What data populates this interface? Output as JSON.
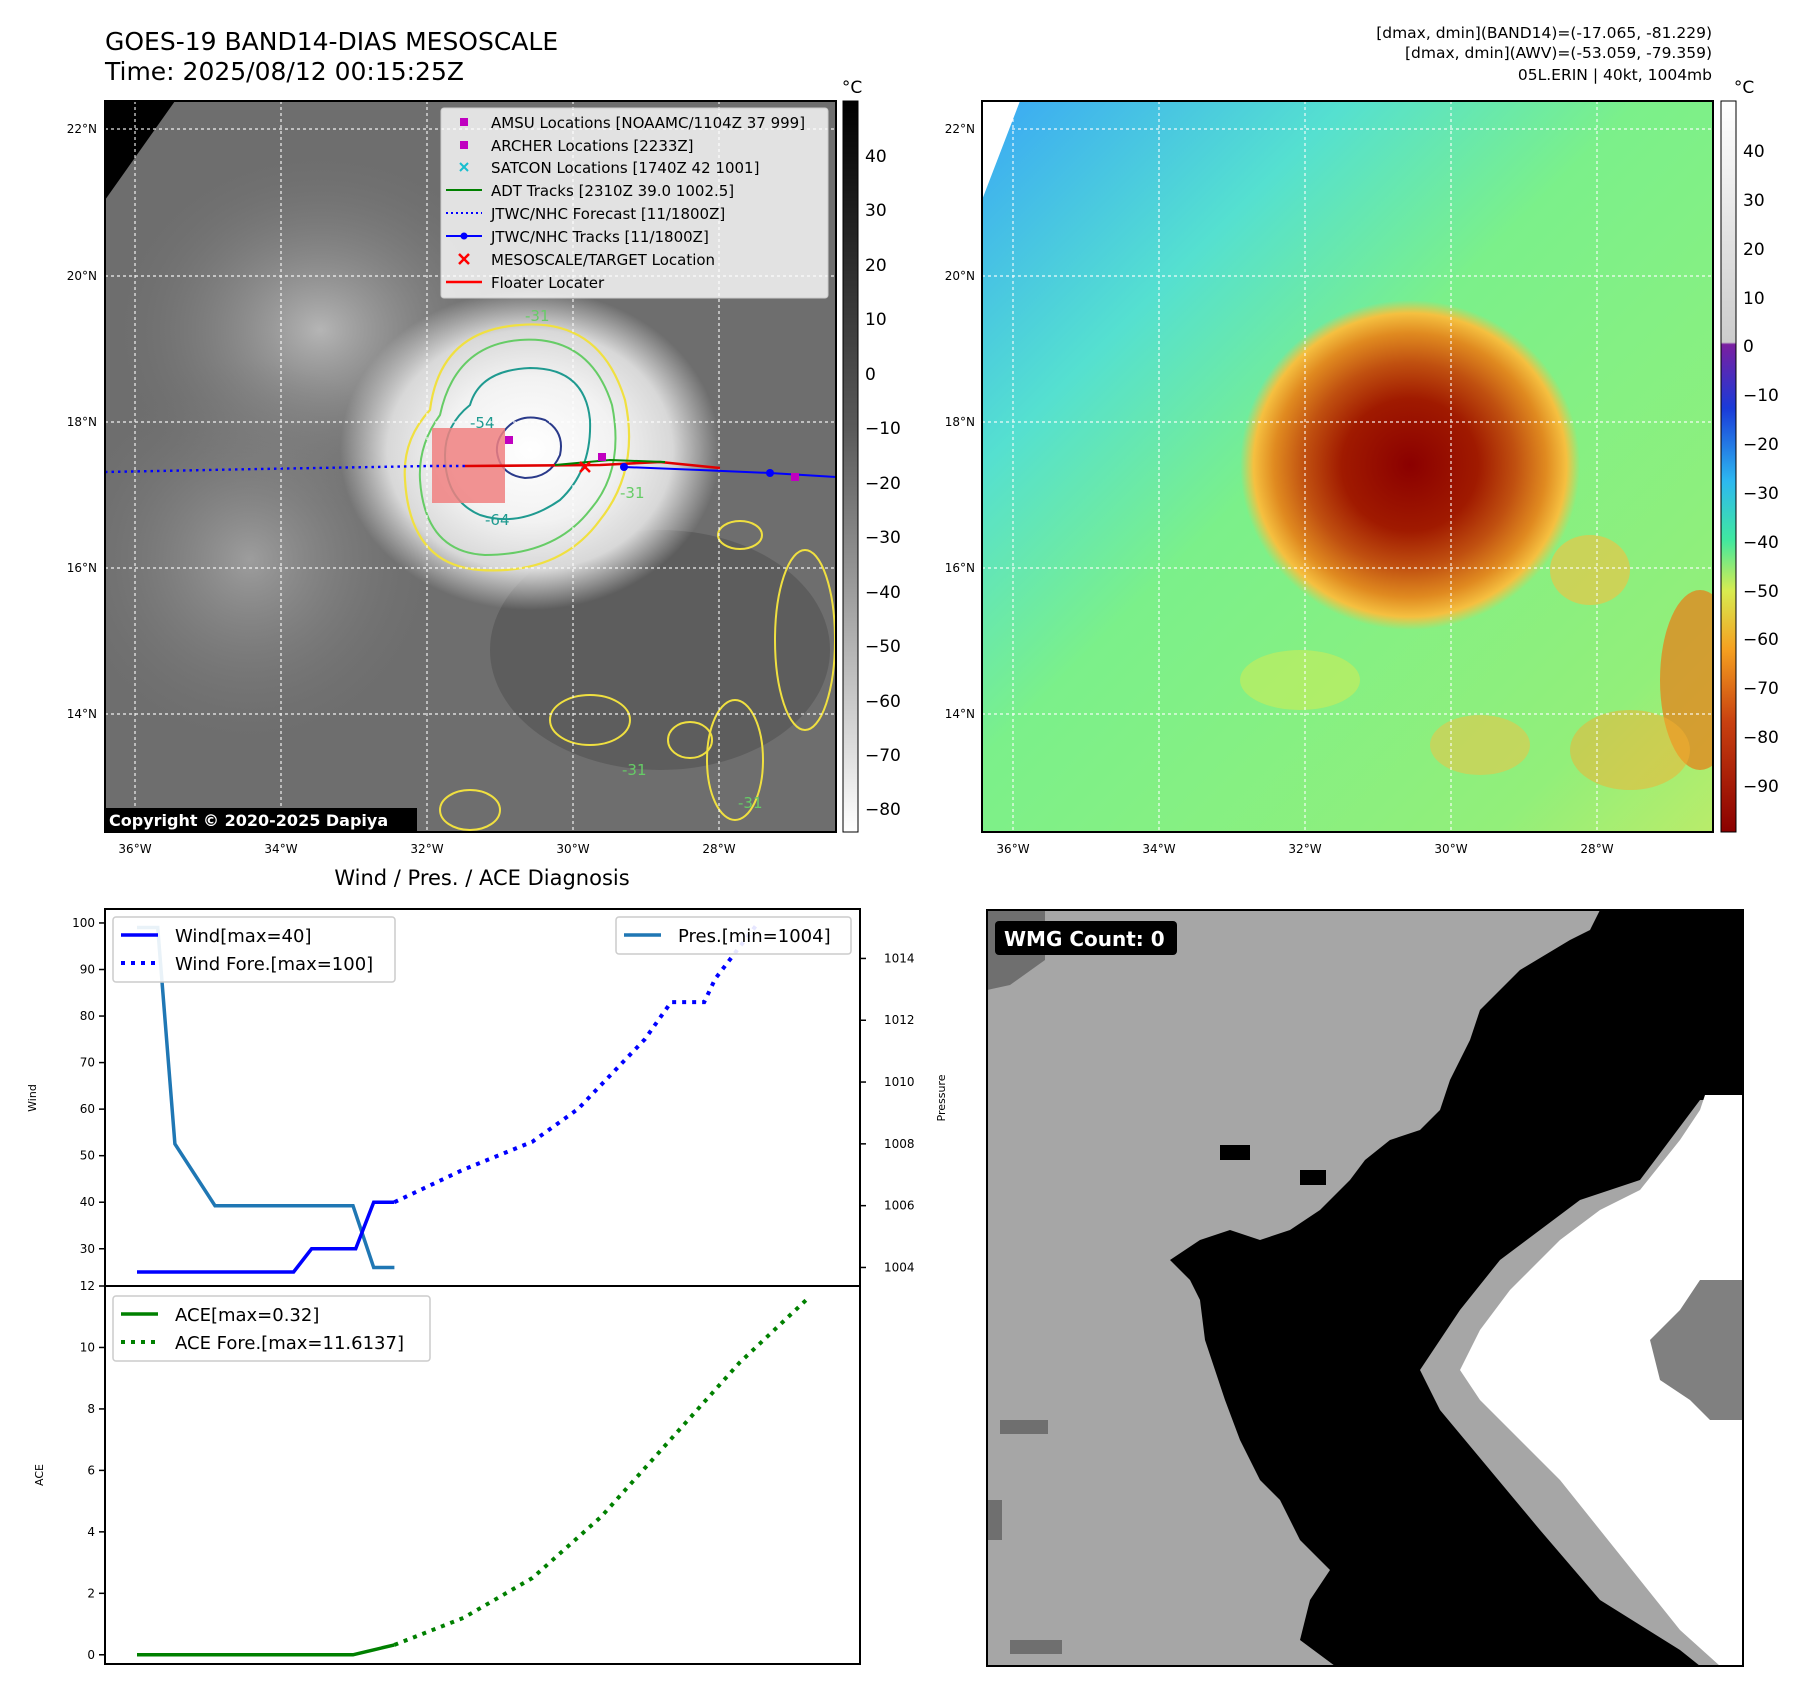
{
  "header": {
    "title_line1": "GOES-19 BAND14-DIAS MESOSCALE",
    "title_line2": "Time: 2025/08/12 00:15:25Z",
    "info_line1": "[dmax, dmin](BAND14)=(-17.065, -81.229)",
    "info_line2": "[dmax, dmin](AWV)=(-53.059, -79.359)",
    "info_line3": "05L.ERIN | 40kt, 1004mb"
  },
  "ir_map": {
    "lon_ticks": [
      "36°W",
      "34°W",
      "32°W",
      "30°W",
      "28°W"
    ],
    "lat_ticks": [
      "22°N",
      "20°N",
      "18°N",
      "16°N",
      "14°N"
    ],
    "copyright": "Copyright © 2020-2025 Dapiya",
    "colorbar_unit": "°C",
    "colorbar_ticks": [
      "40",
      "30",
      "20",
      "10",
      "0",
      "−10",
      "−20",
      "−30",
      "−40",
      "−50",
      "−60",
      "−70",
      "−80"
    ],
    "contour_labels": [
      "-31",
      "-64",
      "-31",
      "-31",
      "-31",
      "-54"
    ],
    "legend": [
      {
        "label": "AMSU Locations [NOAAMC/1104Z 37 999]",
        "color": "#c000c0",
        "marker": "square"
      },
      {
        "label": "ARCHER Locations [2233Z]",
        "color": "#c000c0",
        "marker": "square"
      },
      {
        "label": "SATCON Locations [1740Z 42 1001]",
        "color": "#17becf",
        "marker": "x"
      },
      {
        "label": "ADT Tracks [2310Z 39.0 1002.5]",
        "color": "#008000",
        "marker": "line"
      },
      {
        "label": "JTWC/NHC Forecast [11/1800Z]",
        "color": "#0000ff",
        "marker": "dotted"
      },
      {
        "label": "JTWC/NHC Tracks [11/1800Z]",
        "color": "#0000ff",
        "marker": "line-dot"
      },
      {
        "label": "MESOSCALE/TARGET Location",
        "color": "#ff0000",
        "marker": "x"
      },
      {
        "label": "Floater Locater",
        "color": "#ff0000",
        "marker": "line"
      }
    ]
  },
  "awv_map": {
    "lon_ticks": [
      "36°W",
      "34°W",
      "32°W",
      "30°W",
      "28°W"
    ],
    "lat_ticks": [
      "22°N",
      "20°N",
      "18°N",
      "16°N",
      "14°N"
    ],
    "colorbar_unit": "°C",
    "colorbar_ticks": [
      "40",
      "30",
      "20",
      "10",
      "0",
      "−10",
      "−20",
      "−30",
      "−40",
      "−50",
      "−60",
      "−70",
      "−80",
      "−90"
    ]
  },
  "wmg": {
    "label": "WMG Count: 0"
  },
  "diagnosis": {
    "title": "Wind / Pres. / ACE Diagnosis",
    "wind_ylabel": "Wind",
    "pres_ylabel": "Pressure",
    "ace_ylabel": "ACE",
    "wind_ticks": [
      "30",
      "40",
      "50",
      "60",
      "70",
      "80",
      "90",
      "100"
    ],
    "pres_ticks": [
      "1004",
      "1006",
      "1008",
      "1010",
      "1012",
      "1014"
    ],
    "ace_ticks": [
      "0",
      "2",
      "4",
      "6",
      "8",
      "10",
      "12"
    ],
    "legend_wind": "Wind[max=40]",
    "legend_wind_fore": "Wind Fore.[max=100]",
    "legend_pres": "Pres.[min=1004]",
    "legend_ace": "ACE[max=0.32]",
    "legend_ace_fore": "ACE Fore.[max=11.6137]",
    "colors": {
      "wind": "#0000ff",
      "pres": "#1f77b4",
      "ace": "#008000"
    }
  },
  "chart_data": [
    {
      "type": "line",
      "title": "Wind / Pres. / ACE Diagnosis",
      "ylabel": "Wind",
      "ylim": [
        22,
        103
      ],
      "xlim": [
        0,
        1
      ],
      "series": [
        {
          "name": "Wind[max=40]",
          "x": [
            0.0,
            0.227,
            0.253,
            0.317,
            0.343,
            0.373
          ],
          "values": [
            25,
            25,
            30,
            30,
            40,
            40
          ]
        },
        {
          "name": "Wind Fore.[max=100]",
          "x": [
            0.373,
            0.473,
            0.573,
            0.639,
            0.736,
            0.774,
            0.822,
            0.838,
            0.9
          ],
          "values": [
            40,
            47,
            53,
            60,
            75,
            83,
            83,
            88,
            100
          ]
        }
      ]
    },
    {
      "type": "line",
      "ylabel": "Pressure",
      "ylim": [
        1003.4,
        1015.6
      ],
      "xlim": [
        0,
        1
      ],
      "series": [
        {
          "name": "Pres.[min=1004]",
          "x": [
            0.0,
            0.03,
            0.055,
            0.113,
            0.313,
            0.343,
            0.373
          ],
          "values": [
            1015,
            1015,
            1008,
            1006,
            1006,
            1004,
            1004
          ]
        }
      ]
    },
    {
      "type": "line",
      "ylabel": "ACE",
      "ylim": [
        -0.3,
        12
      ],
      "xlim": [
        0,
        1
      ],
      "series": [
        {
          "name": "ACE[max=0.32]",
          "x": [
            0.0,
            0.313,
            0.373
          ],
          "values": [
            0,
            0,
            0.32
          ]
        },
        {
          "name": "ACE Fore.[max=11.6137]",
          "x": [
            0.373,
            0.473,
            0.573,
            0.673,
            0.773,
            0.873,
            0.973
          ],
          "values": [
            0.32,
            1.2,
            2.5,
            4.5,
            7.0,
            9.5,
            11.6137
          ]
        }
      ]
    }
  ]
}
